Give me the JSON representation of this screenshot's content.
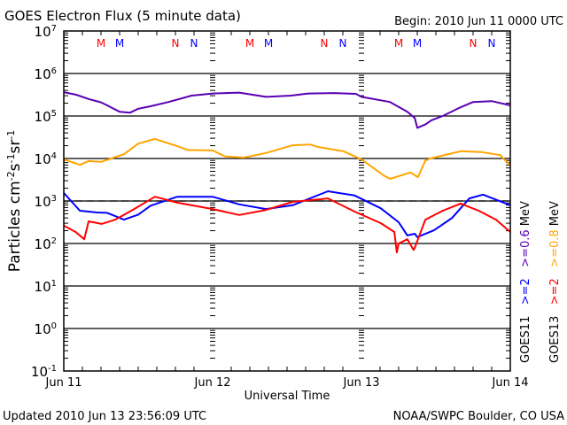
{
  "chart_data": {
    "type": "line",
    "title": "GOES Electron Flux (5 minute data)",
    "begin_label": "Begin: 2010 Jun 11 0000 UTC",
    "xlabel": "Universal Time",
    "ylabel": "Particles cm-2s-1sr-1",
    "y_scale": "log",
    "ylim_log10": [
      -1,
      7
    ],
    "y_ticks": [
      {
        "base": "10",
        "exp": "7",
        "value": 7
      },
      {
        "base": "10",
        "exp": "6",
        "value": 6
      },
      {
        "base": "10",
        "exp": "5",
        "value": 5
      },
      {
        "base": "10",
        "exp": "4",
        "value": 4
      },
      {
        "base": "10",
        "exp": "3",
        "value": 3
      },
      {
        "base": "10",
        "exp": "2",
        "value": 2
      },
      {
        "base": "10",
        "exp": "1",
        "value": 1
      },
      {
        "base": "10",
        "exp": "0",
        "value": 0
      },
      {
        "base": "10",
        "exp": "-1",
        "value": -1
      }
    ],
    "xlim_hours": [
      0,
      72
    ],
    "x_ticks": [
      {
        "label": "Jun 11",
        "hour": 0
      },
      {
        "label": "Jun 12",
        "hour": 24
      },
      {
        "label": "Jun 13",
        "hour": 48
      },
      {
        "label": "Jun 14",
        "hour": 72
      }
    ],
    "threshold_log10": 3,
    "grid_decades": [
      6,
      5,
      4,
      3,
      2,
      1,
      0
    ],
    "local_time_markers": [
      {
        "label": "M",
        "hour": 6,
        "color": "#ff0000"
      },
      {
        "label": "M",
        "hour": 9,
        "color": "#0000ff"
      },
      {
        "label": "N",
        "hour": 18,
        "color": "#ff0000"
      },
      {
        "label": "N",
        "hour": 21,
        "color": "#0000ff"
      },
      {
        "label": "M",
        "hour": 30,
        "color": "#ff0000"
      },
      {
        "label": "M",
        "hour": 33,
        "color": "#0000ff"
      },
      {
        "label": "N",
        "hour": 42,
        "color": "#ff0000"
      },
      {
        "label": "N",
        "hour": 45,
        "color": "#0000ff"
      },
      {
        "label": "M",
        "hour": 54,
        "color": "#ff0000"
      },
      {
        "label": "M",
        "hour": 57,
        "color": "#0000ff"
      },
      {
        "label": "N",
        "hour": 66,
        "color": "#ff0000"
      },
      {
        "label": "N",
        "hour": 69,
        "color": "#0000ff"
      }
    ],
    "series": [
      {
        "name": "GOES11 >=0.6 MeV",
        "color": "#5a00b4",
        "hours": [
          0,
          2,
          4,
          6,
          7,
          9,
          10.7,
          12,
          14,
          16.9,
          20.6,
          24,
          28.3,
          32.6,
          36.6,
          39.4,
          43.7,
          47.1,
          48,
          52.6,
          55.4,
          56.6,
          57,
          58.3,
          59.3,
          61.1,
          63.9,
          66,
          69,
          72
        ],
        "log10": [
          5.56,
          5.5,
          5.4,
          5.32,
          5.25,
          5.1,
          5.08,
          5.17,
          5.23,
          5.33,
          5.48,
          5.53,
          5.55,
          5.45,
          5.48,
          5.53,
          5.54,
          5.52,
          5.45,
          5.33,
          5.1,
          4.95,
          4.72,
          4.8,
          4.9,
          5.0,
          5.2,
          5.33,
          5.35,
          5.25
        ]
      },
      {
        "name": "GOES13 >=0.8 MeV",
        "color": "#ffa500",
        "hours": [
          0,
          2.6,
          4,
          6,
          9.7,
          12,
          14.7,
          18.3,
          20,
          24,
          26,
          29,
          32.6,
          36.9,
          39.7,
          41,
          45.1,
          48,
          51.6,
          52.6,
          55.9,
          57.1,
          58.3,
          59.1,
          64,
          67.4,
          70.4,
          71,
          72
        ],
        "log10": [
          3.98,
          3.85,
          3.94,
          3.92,
          4.1,
          4.35,
          4.46,
          4.29,
          4.2,
          4.19,
          4.05,
          4.02,
          4.13,
          4.31,
          4.33,
          4.27,
          4.17,
          3.98,
          3.6,
          3.52,
          3.67,
          3.56,
          3.95,
          4.0,
          4.17,
          4.15,
          4.08,
          3.98,
          3.85
        ]
      },
      {
        "name": "GOES11 >=2 MeV",
        "color": "#0000ff",
        "hours": [
          0,
          2.6,
          5.4,
          7,
          9.7,
          12,
          14,
          18.3,
          24,
          28.3,
          32.6,
          36.9,
          42.6,
          46.9,
          51.1,
          54,
          55.4,
          56.6,
          57,
          59.7,
          62.6,
          65.4,
          67.6,
          72
        ],
        "log10": [
          3.19,
          2.77,
          2.73,
          2.72,
          2.56,
          2.68,
          2.89,
          3.1,
          3.1,
          2.92,
          2.81,
          2.9,
          3.23,
          3.13,
          2.83,
          2.5,
          2.19,
          2.23,
          2.15,
          2.31,
          2.6,
          3.06,
          3.15,
          2.9
        ]
      },
      {
        "name": "GOES13 >=2 MeV",
        "color": "#ff0000",
        "hours": [
          0,
          1.9,
          3.3,
          4,
          6.1,
          8.3,
          11.1,
          14.7,
          18.3,
          24,
          28.3,
          32.6,
          36.9,
          42.6,
          46.9,
          51.1,
          53.3,
          53.7,
          54,
          55.4,
          56.4,
          56.6,
          58.3,
          61.1,
          64,
          66.9,
          69.7,
          72
        ],
        "log10": [
          2.42,
          2.27,
          2.1,
          2.52,
          2.46,
          2.56,
          2.79,
          3.1,
          2.96,
          2.81,
          2.67,
          2.79,
          2.98,
          3.06,
          2.75,
          2.48,
          2.27,
          1.79,
          2.0,
          2.1,
          1.85,
          1.9,
          2.56,
          2.77,
          2.94,
          2.77,
          2.56,
          2.27
        ]
      }
    ],
    "legend": {
      "placement": "right",
      "lines": [
        {
          "satellite": "GOES11",
          "entries": [
            {
              "text": ">=2",
              "color": "#0000ff"
            },
            {
              "text": ">=0.6",
              "color": "#5a00b4"
            }
          ],
          "unit": "MeV"
        },
        {
          "satellite": "GOES13",
          "entries": [
            {
              "text": ">=2",
              "color": "#ff0000"
            },
            {
              "text": ">=0.8",
              "color": "#ffa500"
            }
          ],
          "unit": "MeV"
        }
      ]
    }
  },
  "footer": {
    "updated": "Updated 2010 Jun 13 23:56:09 UTC",
    "source": "NOAA/SWPC Boulder, CO USA"
  }
}
